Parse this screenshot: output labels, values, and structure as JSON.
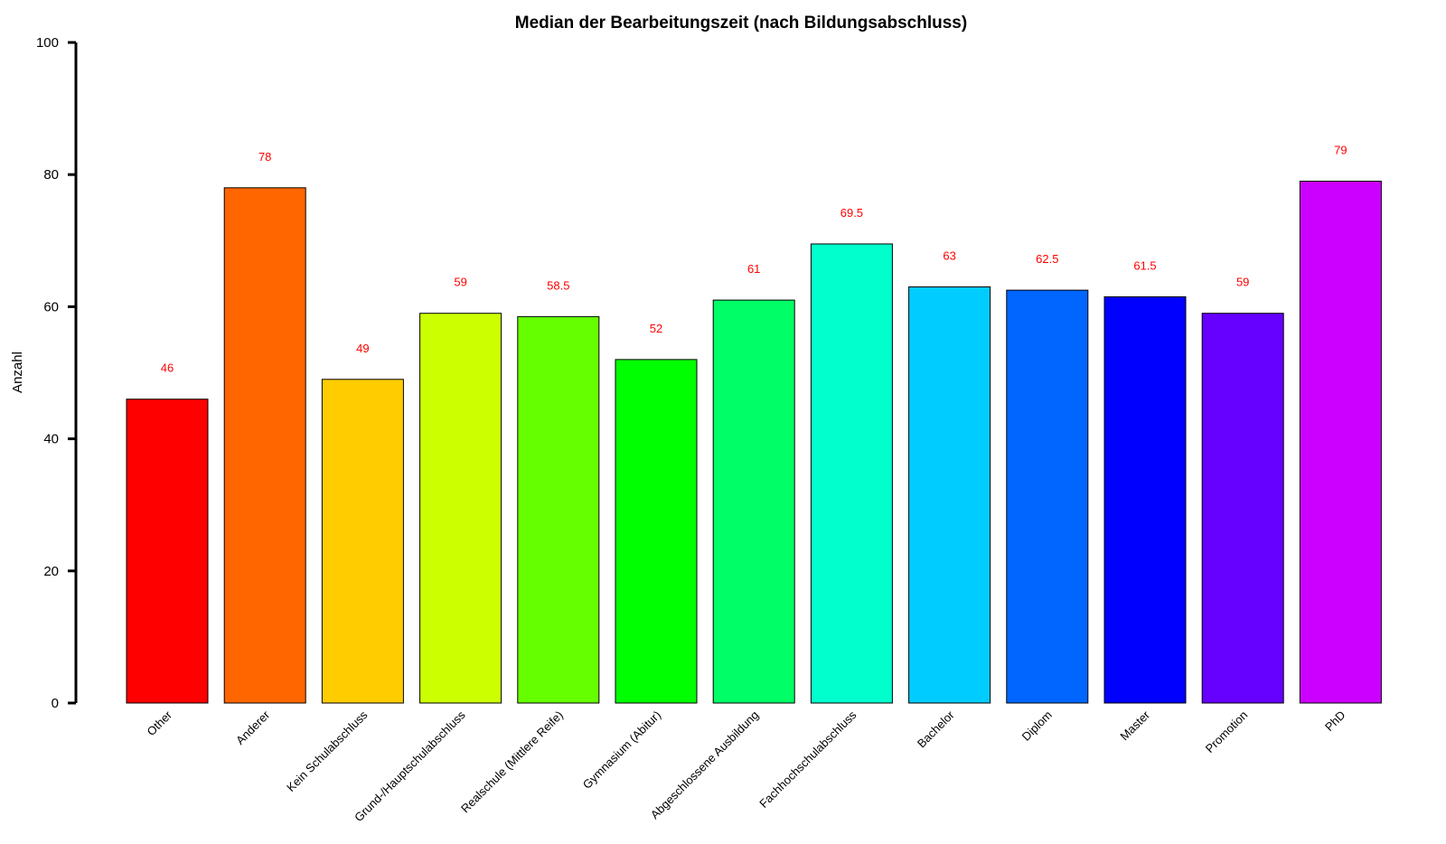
{
  "chart_data": {
    "type": "bar",
    "title": "Median der Bearbeitungszeit (nach Bildungsabschluss)",
    "xlabel": "",
    "ylabel": "Anzahl",
    "ylim": [
      0,
      100
    ],
    "yticks": [
      0,
      20,
      40,
      60,
      80,
      100
    ],
    "grid": false,
    "legend": "none",
    "categories": [
      "Other",
      "Anderer",
      "Kein Schulabschluss",
      "Grund-/Hauptschulabschluss",
      "Realschule (Mittlere Reife)",
      "Gymnasium (Abitur)",
      "Abgeschlossene Ausbildung",
      "Fachhochschulabschluss",
      "Bachelor",
      "Diplom",
      "Master",
      "Promotion",
      "PhD"
    ],
    "values": [
      46,
      78,
      49,
      59,
      58.5,
      52,
      61,
      69.5,
      63,
      62.5,
      61.5,
      59,
      79
    ],
    "data_labels": [
      "46",
      "78",
      "49",
      "59",
      "58.5",
      "52",
      "61",
      "69.5",
      "63",
      "62.5",
      "61.5",
      "59",
      "79"
    ],
    "colors": [
      "#FF0000",
      "#FF6600",
      "#FFCC00",
      "#CCFF00",
      "#66FF00",
      "#00FF00",
      "#00FF66",
      "#00FFCC",
      "#00CCFF",
      "#0066FF",
      "#0000FF",
      "#6600FF",
      "#CC00FF"
    ],
    "data_label_color": "#FF0000"
  }
}
